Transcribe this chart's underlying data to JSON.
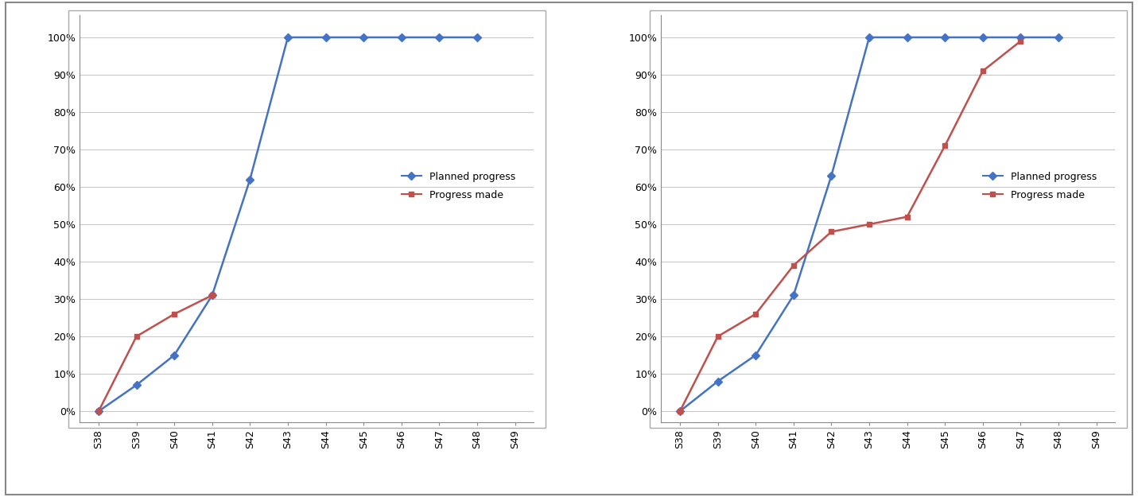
{
  "categories": [
    "S38",
    "S39",
    "S40",
    "S41",
    "S42",
    "S43",
    "S44",
    "S45",
    "S46",
    "S47",
    "S48",
    "S49"
  ],
  "chart1": {
    "planned": [
      0,
      7,
      15,
      31,
      62,
      100,
      100,
      100,
      100,
      100,
      100,
      null
    ],
    "progress": [
      0,
      20,
      26,
      31,
      null,
      null,
      null,
      null,
      null,
      null,
      null,
      null
    ]
  },
  "chart2": {
    "planned": [
      0,
      8,
      15,
      31,
      63,
      100,
      100,
      100,
      100,
      100,
      100,
      null
    ],
    "progress": [
      0,
      20,
      26,
      39,
      48,
      50,
      52,
      71,
      91,
      99,
      null,
      null
    ]
  },
  "planned_color": "#4472C4",
  "progress_color": "#C0504D",
  "planned_label": "Planned progress",
  "progress_label": "Progress made",
  "yticks": [
    0,
    10,
    20,
    30,
    40,
    50,
    60,
    70,
    80,
    90,
    100
  ],
  "ylim": [
    -3,
    106
  ],
  "background_color": "#FFFFFF",
  "grid_color": "#C8C8C8",
  "border_color": "#888888",
  "tick_fontsize": 9,
  "legend_fontsize": 9,
  "figsize": [
    14.31,
    6.25
  ],
  "dpi": 100
}
